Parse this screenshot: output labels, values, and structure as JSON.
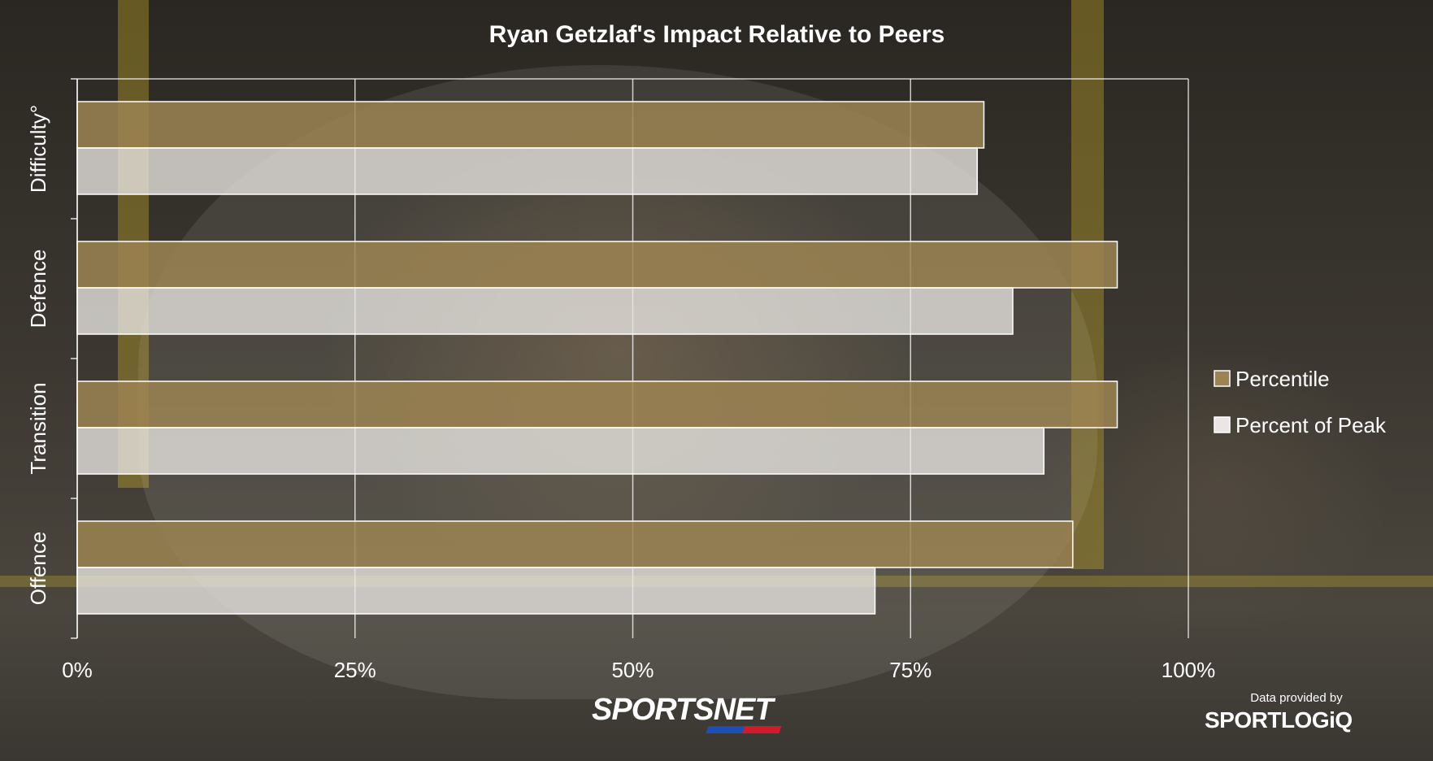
{
  "chart_data": {
    "type": "bar",
    "orientation": "horizontal",
    "title": "Ryan Getzlaf's Impact Relative to Peers",
    "categories": [
      "Difficulty°",
      "Defence",
      "Transition",
      "Offence"
    ],
    "series": [
      {
        "name": "Percentile",
        "color": "#9c8452",
        "values": [
          81.6,
          93.6,
          93.6,
          89.6
        ]
      },
      {
        "name": "Percent of Peak",
        "color": "#e9e7e3",
        "values": [
          81.0,
          84.2,
          87.0,
          71.8
        ]
      }
    ],
    "xlim": [
      0,
      100
    ],
    "x_ticks": [
      0,
      25,
      50,
      75,
      100
    ],
    "x_tick_labels": [
      "0%",
      "25%",
      "50%",
      "75%",
      "100%"
    ],
    "grid": true,
    "legend_position": "right"
  },
  "branding": {
    "sportsnet": "SPORTSNET",
    "provided_by": "Data provided by",
    "sportlogiq": "SPORTLOGiQ"
  }
}
